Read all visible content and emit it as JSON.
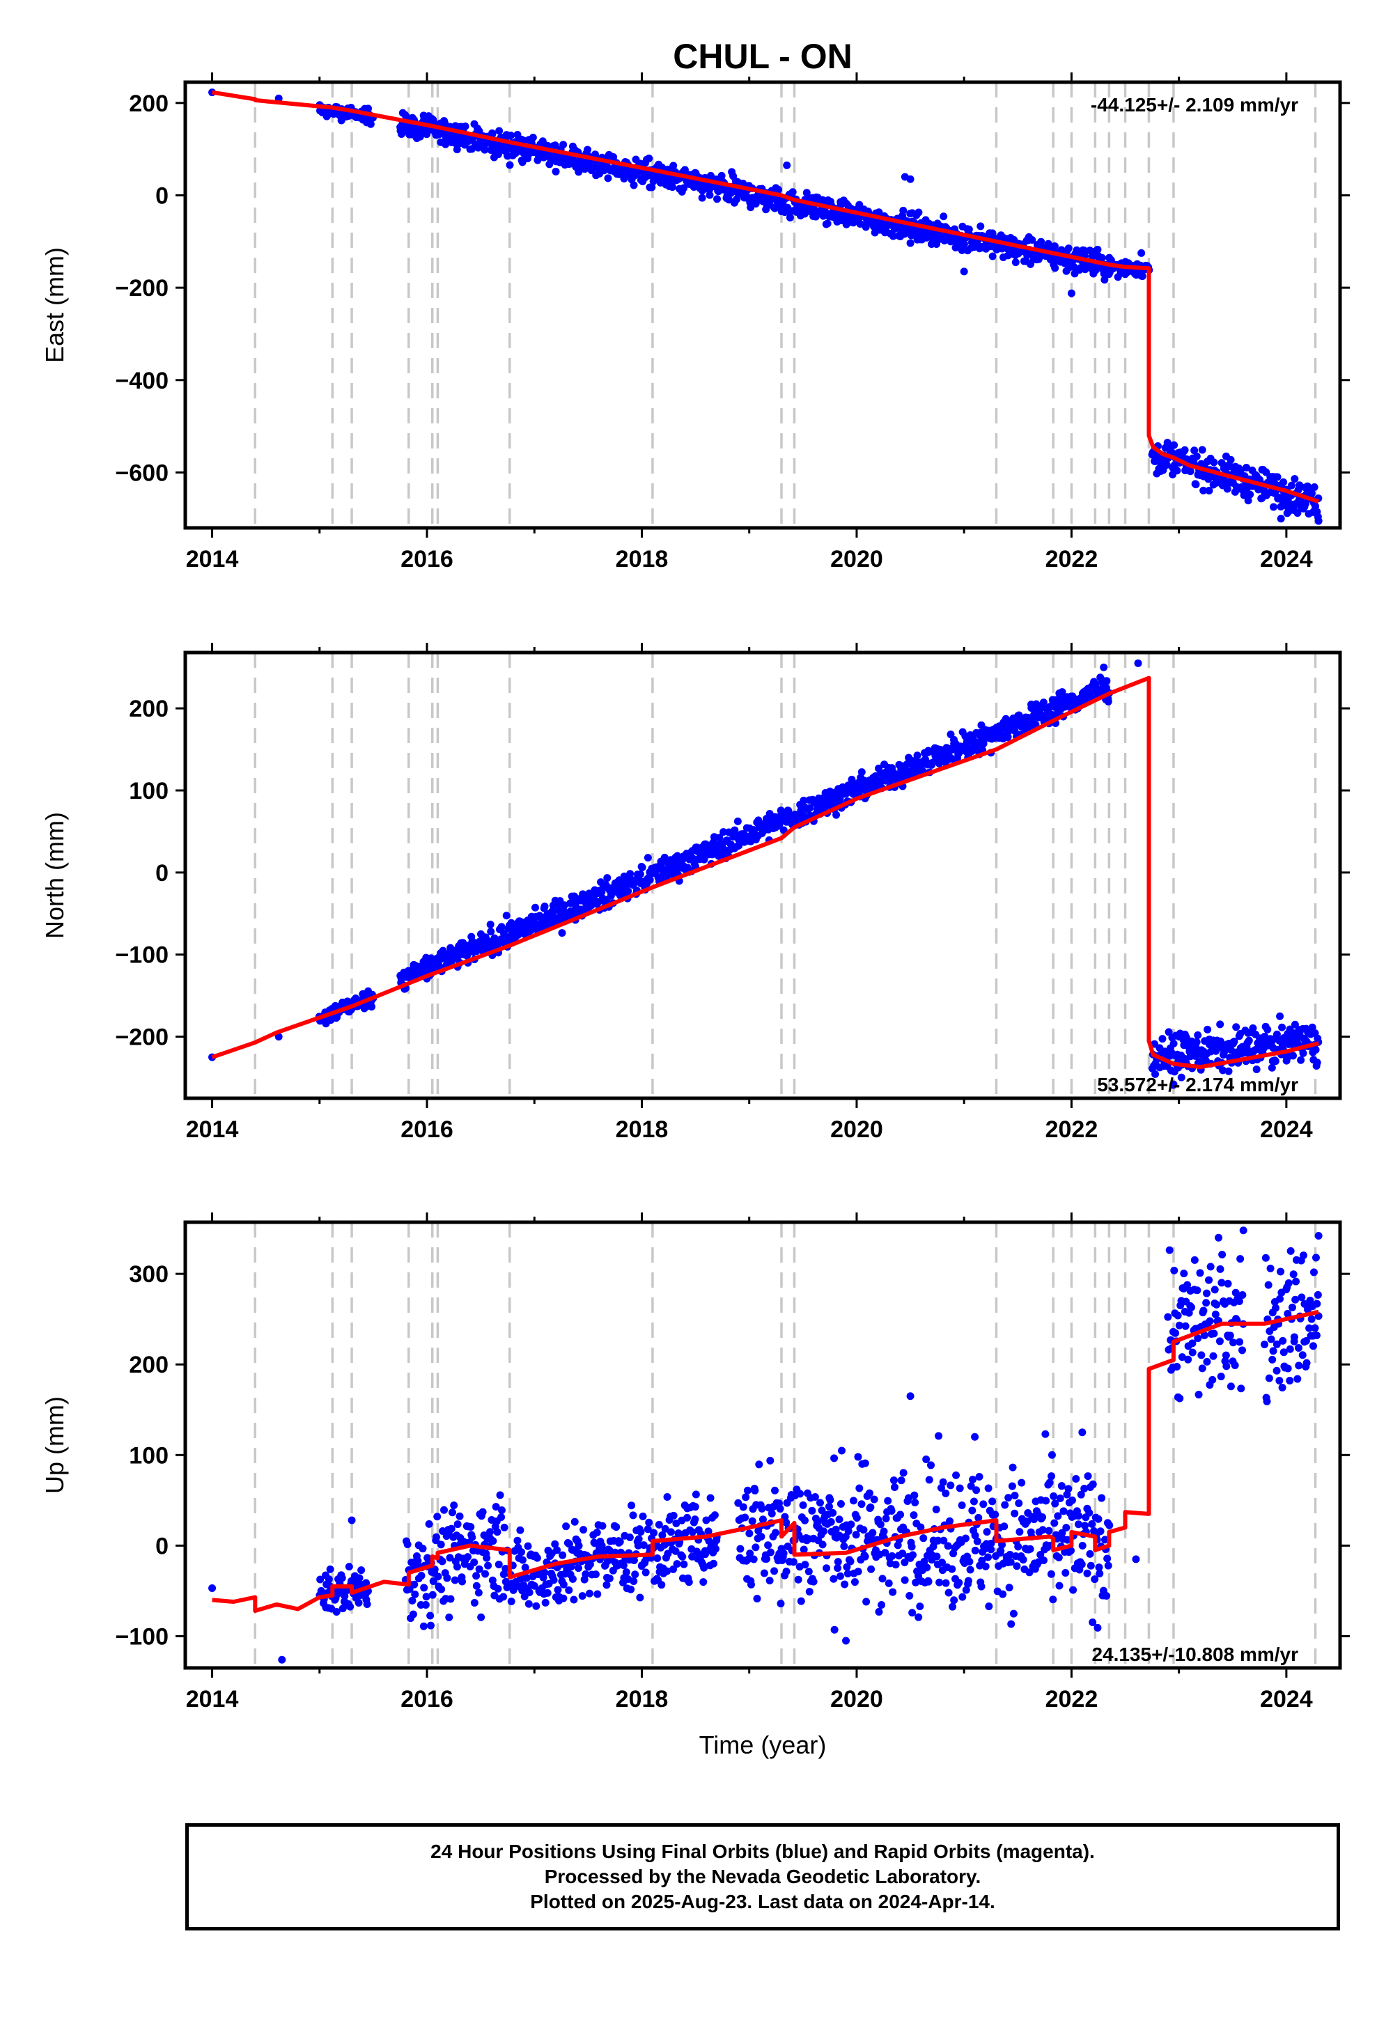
{
  "figure_title": "CHUL - ON",
  "x_axis_title": "Time (year)",
  "footer": {
    "line1": "24 Hour Positions Using Final Orbits (blue) and Rapid Orbits (magenta).",
    "line2": "Processed by the Nevada Geodetic Laboratory.",
    "line3": "Plotted on 2025-Aug-23. Last data on 2024-Apr-14."
  },
  "colors": {
    "final_orbit_points": "#0000ff",
    "model_fit_line": "#ff0000",
    "event_lines": "#c8c8c8"
  },
  "chart_data": [
    {
      "type": "scatter",
      "component": "east",
      "ylabel": "East (mm)",
      "xlabel": "",
      "xlim": [
        2013.75,
        2024.5
      ],
      "ylim": [
        -720,
        245
      ],
      "x_ticks": [
        2014,
        2016,
        2018,
        2020,
        2022,
        2024
      ],
      "y_ticks": [
        -600,
        -400,
        -200,
        0,
        200
      ],
      "rate_text": "-44.125+/- 2.109 mm/yr",
      "rate_position": "top-right",
      "event_lines_x": [
        2014.4,
        2015.12,
        2015.3,
        2015.83,
        2016.05,
        2016.1,
        2016.77,
        2018.1,
        2019.3,
        2019.42,
        2021.3,
        2021.83,
        2022.0,
        2022.22,
        2022.35,
        2022.5,
        2022.72,
        2022.95,
        2024.27
      ],
      "series": [
        {
          "name": "Final Orbits",
          "style": "points",
          "data_segments": [
            {
              "x": [
                2014.0,
                2014.0
              ],
              "y": [
                223,
                223
              ],
              "scatter": 0
            },
            {
              "x": [
                2014.62,
                2014.62
              ],
              "y": [
                210,
                210
              ],
              "scatter": 0
            },
            {
              "x": [
                2015.0,
                2015.5
              ],
              "y": [
                186,
                170
              ],
              "scatter": 8
            },
            {
              "x": [
                2015.75,
                2022.35
              ],
              "y": [
                155,
                -155
              ],
              "scatter": 14
            },
            {
              "x": [
                2022.35,
                2022.72
              ],
              "y": [
                -155,
                -160
              ],
              "scatter": 8
            },
            {
              "x": [
                2022.75,
                2024.3
              ],
              "y": [
                -560,
                -665
              ],
              "scatter": 18
            }
          ],
          "outliers": [
            [
              2019.35,
              65
            ],
            [
              2020.45,
              40
            ],
            [
              2020.5,
              35
            ],
            [
              2022.0,
              -212
            ],
            [
              2021.0,
              -165
            ],
            [
              2022.65,
              -125
            ],
            [
              2023.95,
              -700
            ],
            [
              2024.3,
              -705
            ]
          ]
        },
        {
          "name": "Model",
          "style": "line",
          "x": [
            2014.0,
            2014.4,
            2014.4,
            2015.12,
            2015.3,
            2016.05,
            2016.77,
            2018.1,
            2019.3,
            2019.42,
            2021.3,
            2022.35,
            2022.5,
            2022.72,
            2022.72,
            2022.76,
            2022.85,
            2022.95,
            2023.1,
            2023.5,
            2024.0,
            2024.3
          ],
          "y": [
            223,
            208,
            206,
            190,
            183,
            150,
            115,
            55,
            0,
            -10,
            -100,
            -150,
            -155,
            -158,
            -520,
            -545,
            -560,
            -568,
            -585,
            -610,
            -640,
            -663
          ]
        }
      ]
    },
    {
      "type": "scatter",
      "component": "north",
      "ylabel": "North (mm)",
      "xlabel": "",
      "xlim": [
        2013.75,
        2024.5
      ],
      "ylim": [
        -275,
        268
      ],
      "x_ticks": [
        2014,
        2016,
        2018,
        2020,
        2022,
        2024
      ],
      "y_ticks": [
        -200,
        -100,
        0,
        100,
        200
      ],
      "rate_text": "53.572+/- 2.174 mm/yr",
      "rate_position": "bottom-right",
      "event_lines_x": [
        2014.4,
        2015.12,
        2015.3,
        2015.83,
        2016.05,
        2016.1,
        2016.77,
        2018.1,
        2019.3,
        2019.42,
        2021.3,
        2021.83,
        2022.0,
        2022.22,
        2022.35,
        2022.5,
        2022.72,
        2022.95,
        2024.27
      ],
      "series": [
        {
          "name": "Final Orbits",
          "style": "points",
          "data_segments": [
            {
              "x": [
                2014.0,
                2014.0
              ],
              "y": [
                -225,
                -225
              ],
              "scatter": 0
            },
            {
              "x": [
                2014.62,
                2014.62
              ],
              "y": [
                -200,
                -200
              ],
              "scatter": 0
            },
            {
              "x": [
                2015.0,
                2015.5
              ],
              "y": [
                -177,
                -152
              ],
              "scatter": 5
            },
            {
              "x": [
                2015.75,
                2022.35
              ],
              "y": [
                -130,
                228
              ],
              "scatter": 8
            },
            {
              "x": [
                2022.75,
                2024.3
              ],
              "y": [
                -225,
                -205
              ],
              "scatter": 12
            }
          ],
          "outliers": [
            [
              2022.62,
              255
            ],
            [
              2022.3,
              250
            ],
            [
              2022.95,
              -258
            ]
          ]
        },
        {
          "name": "Model",
          "style": "line",
          "x": [
            2014.0,
            2014.4,
            2014.6,
            2015.3,
            2016.0,
            2016.77,
            2018.1,
            2019.3,
            2019.42,
            2020.0,
            2021.3,
            2021.83,
            2022.35,
            2022.72,
            2022.72,
            2022.76,
            2022.95,
            2023.2,
            2024.0,
            2024.3
          ],
          "y": [
            -225,
            -207,
            -195,
            -163,
            -126,
            -89,
            -18,
            42,
            55,
            90,
            150,
            185,
            218,
            237,
            -205,
            -222,
            -233,
            -237,
            -218,
            -208
          ]
        }
      ]
    },
    {
      "type": "scatter",
      "component": "up",
      "ylabel": "Up (mm)",
      "xlabel": "Time (year)",
      "xlim": [
        2013.75,
        2024.5
      ],
      "ylim": [
        -135,
        357
      ],
      "x_ticks": [
        2014,
        2016,
        2018,
        2020,
        2022,
        2024
      ],
      "y_ticks": [
        -100,
        0,
        100,
        200,
        300
      ],
      "rate_text": "24.135+/-10.808 mm/yr",
      "rate_position": "bottom-right",
      "event_lines_x": [
        2014.4,
        2015.12,
        2015.3,
        2015.83,
        2016.05,
        2016.1,
        2016.77,
        2018.1,
        2019.3,
        2019.42,
        2021.3,
        2021.83,
        2022.0,
        2022.22,
        2022.35,
        2022.5,
        2022.72,
        2022.95,
        2024.27
      ],
      "series": [
        {
          "name": "Final Orbits",
          "style": "points",
          "data_segments": [
            {
              "x": [
                2014.0,
                2014.0
              ],
              "y": [
                -47,
                -47
              ],
              "scatter": 0
            },
            {
              "x": [
                2015.0,
                2015.45
              ],
              "y": [
                -55,
                -45
              ],
              "scatter": 12
            },
            {
              "x": [
                2015.8,
                2016.75
              ],
              "y": [
                -30,
                5
              ],
              "scatter": 28
            },
            {
              "x": [
                2016.78,
                2018.7
              ],
              "y": [
                -35,
                10
              ],
              "scatter": 22
            },
            {
              "x": [
                2018.9,
                2022.35
              ],
              "y": [
                15,
                5
              ],
              "scatter": 38
            },
            {
              "x": [
                2022.9,
                2023.6
              ],
              "y": [
                240,
                250
              ],
              "scatter": 40
            },
            {
              "x": [
                2023.8,
                2024.3
              ],
              "y": [
                235,
                260
              ],
              "scatter": 40
            }
          ],
          "outliers": [
            [
              2014.65,
              -126
            ],
            [
              2015.3,
              28
            ],
            [
              2019.9,
              -105
            ],
            [
              2020.5,
              165
            ],
            [
              2021.1,
              120
            ],
            [
              2022.1,
              125
            ],
            [
              2023.6,
              348
            ],
            [
              2024.3,
              342
            ],
            [
              2022.6,
              -15
            ]
          ]
        },
        {
          "name": "Model",
          "style": "line",
          "x": [
            2014.0,
            2014.2,
            2014.4,
            2014.4,
            2014.6,
            2014.8,
            2015.0,
            2015.12,
            2015.12,
            2015.3,
            2015.3,
            2015.6,
            2015.83,
            2015.83,
            2016.05,
            2016.05,
            2016.1,
            2016.1,
            2016.4,
            2016.77,
            2016.77,
            2017.2,
            2017.6,
            2018.1,
            2018.1,
            2018.6,
            2019.0,
            2019.3,
            2019.3,
            2019.42,
            2019.42,
            2019.9,
            2020.4,
            2020.8,
            2021.3,
            2021.3,
            2021.8,
            2021.83,
            2021.83,
            2022.0,
            2022.0,
            2022.22,
            2022.22,
            2022.35,
            2022.35,
            2022.5,
            2022.5,
            2022.72,
            2022.72,
            2022.95,
            2022.95,
            2023.4,
            2023.8,
            2024.3
          ],
          "y": [
            -60,
            -62,
            -57,
            -72,
            -65,
            -70,
            -57,
            -55,
            -45,
            -45,
            -52,
            -40,
            -43,
            -30,
            -22,
            -12,
            -14,
            -8,
            0,
            -5,
            -35,
            -20,
            -12,
            -10,
            5,
            10,
            20,
            28,
            10,
            25,
            -10,
            -8,
            10,
            20,
            28,
            5,
            10,
            8,
            -5,
            0,
            15,
            10,
            -5,
            0,
            15,
            20,
            37,
            35,
            195,
            205,
            225,
            245,
            245,
            258
          ]
        }
      ]
    }
  ]
}
